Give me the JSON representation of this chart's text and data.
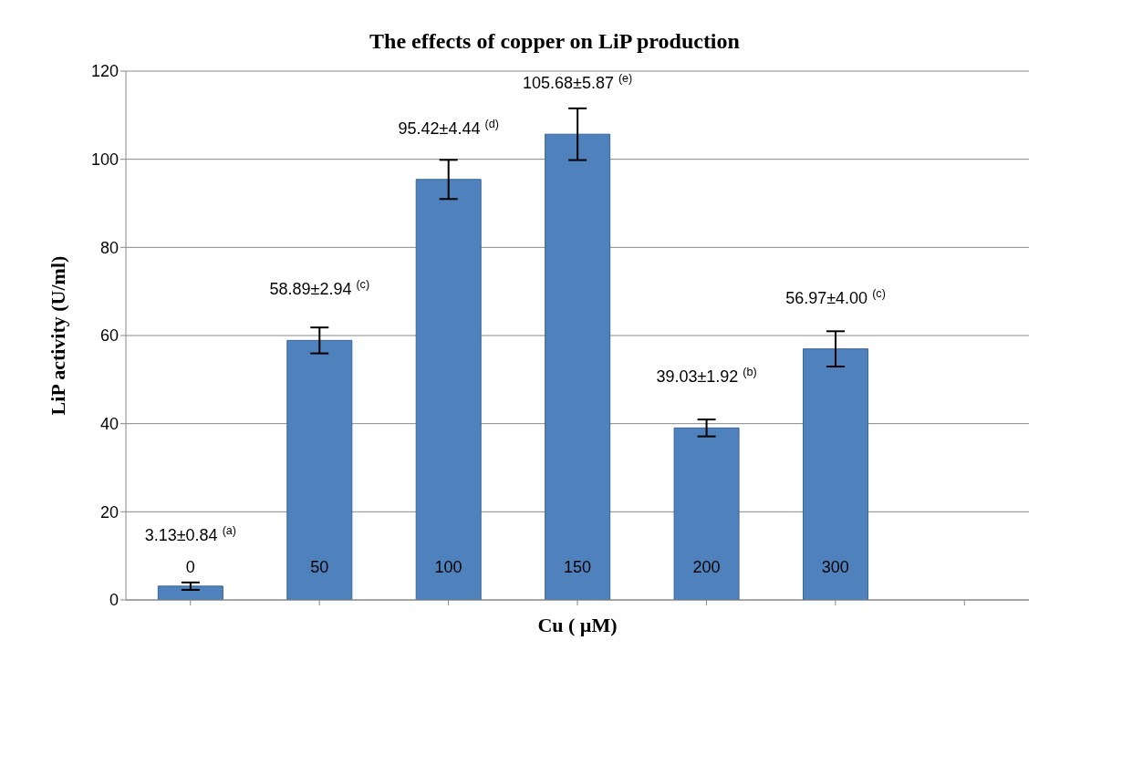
{
  "chart_data": {
    "type": "bar",
    "title": "The effects of copper on LiP production",
    "xlabel": "Cu ( µM)",
    "ylabel": "LiP activity (U/ml)",
    "categories": [
      "0",
      "50",
      "100",
      "150",
      "200",
      "300",
      null
    ],
    "values": [
      3.13,
      58.89,
      95.42,
      105.68,
      39.03,
      56.97,
      null
    ],
    "errors": [
      0.84,
      2.94,
      4.44,
      5.87,
      1.92,
      4.0,
      null
    ],
    "value_labels": [
      "3.13±0.84 $^{(a)}$",
      "58.89±2.94 $^{(c)}$",
      "95.42±4.44 $^{(d)}$",
      "105.68±5.87 $^{(e)}$",
      "39.03±1.92 $^{(b)}$",
      "56.97±4.00 $^{(c)}$",
      null
    ],
    "color": "#4f81bd",
    "ylim": [
      0,
      120
    ],
    "yticks": [
      0,
      20,
      40,
      60,
      80,
      100,
      120
    ],
    "grid": "y"
  }
}
